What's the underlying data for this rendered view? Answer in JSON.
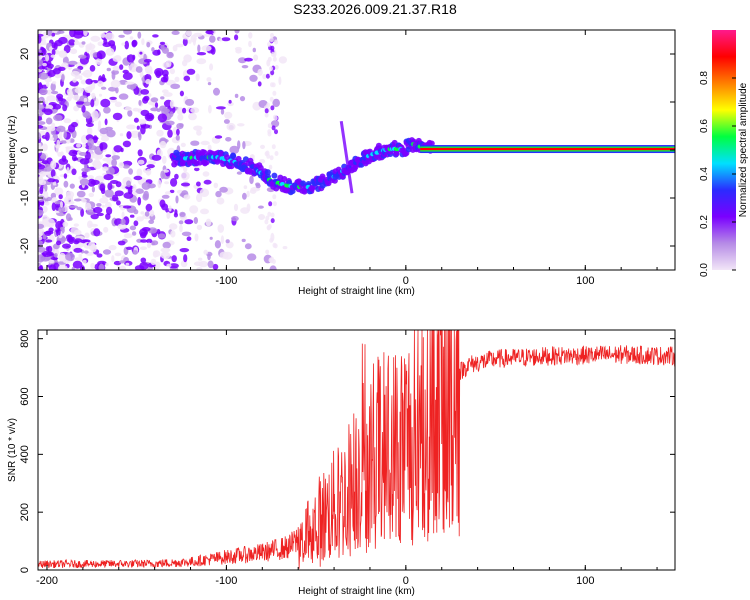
{
  "title": "S233.2026.009.21.37.R18",
  "chart_data": [
    {
      "type": "heatmap",
      "xlabel": "Height of straight line (km)",
      "ylabel": "Frequency (Hz)",
      "xlim": [
        -205,
        150
      ],
      "ylim": [
        -25,
        25
      ],
      "xticks": [
        -200,
        -100,
        0,
        100
      ],
      "yticks": [
        -20,
        -10,
        0,
        10,
        20
      ],
      "colorbar": {
        "label": "Normalized spectral amplitude",
        "range": [
          0,
          1
        ],
        "ticks": [
          0.0,
          0.2,
          0.4,
          0.6,
          0.8
        ],
        "tick_labels": [
          "0.0",
          "0.2",
          "0.4",
          "0.6",
          "0.8"
        ],
        "colors": [
          "#f2e6f7",
          "#b68be6",
          "#7a00ff",
          "#2b2bff",
          "#00e0ff",
          "#00ff40",
          "#ffff00",
          "#ff7f00",
          "#ff0000",
          "#ff1a8c"
        ]
      },
      "signal_track": {
        "height_km": [
          -125,
          -115,
          -105,
          -95,
          -85,
          -75,
          -65,
          -55,
          -45,
          -38,
          -33,
          -25,
          -18,
          -10,
          -2,
          5,
          10,
          20,
          40,
          80,
          120,
          150
        ],
        "frequency_hz": [
          -1.8,
          -1.5,
          -1.5,
          -2.5,
          -3.5,
          -6.5,
          -7.5,
          -7.8,
          -6.5,
          -5.2,
          -3.8,
          -2.0,
          -0.8,
          0.2,
          0.2,
          1.3,
          0.3,
          0.2,
          0.2,
          0.2,
          0.2,
          0.2
        ],
        "amplitude": [
          0.35,
          0.4,
          0.4,
          0.4,
          0.35,
          0.4,
          0.4,
          0.4,
          0.35,
          0.3,
          0.3,
          0.3,
          0.35,
          0.4,
          0.45,
          0.5,
          0.6,
          0.9,
          0.9,
          0.9,
          0.9,
          0.9
        ]
      }
    },
    {
      "type": "line",
      "xlabel": "Height of straight line (km)",
      "ylabel": "SNR (10 * v/v)",
      "xlim": [
        -205,
        150
      ],
      "ylim": [
        0,
        830
      ],
      "xticks": [
        -200,
        -100,
        0,
        100
      ],
      "yticks": [
        0,
        200,
        400,
        600,
        800
      ],
      "series": [
        {
          "name": "SNR",
          "color": "#ee2222",
          "envelope_x": [
            -205,
            -140,
            -120,
            -100,
            -80,
            -65,
            -55,
            -45,
            -35,
            -28,
            -22,
            -15,
            -10,
            -5,
            5,
            15,
            25,
            35,
            50,
            80,
            120,
            150
          ],
          "envelope_y": [
            20,
            22,
            28,
            45,
            60,
            80,
            130,
            190,
            250,
            320,
            380,
            420,
            420,
            430,
            480,
            570,
            660,
            710,
            730,
            740,
            745,
            740
          ]
        }
      ]
    }
  ]
}
